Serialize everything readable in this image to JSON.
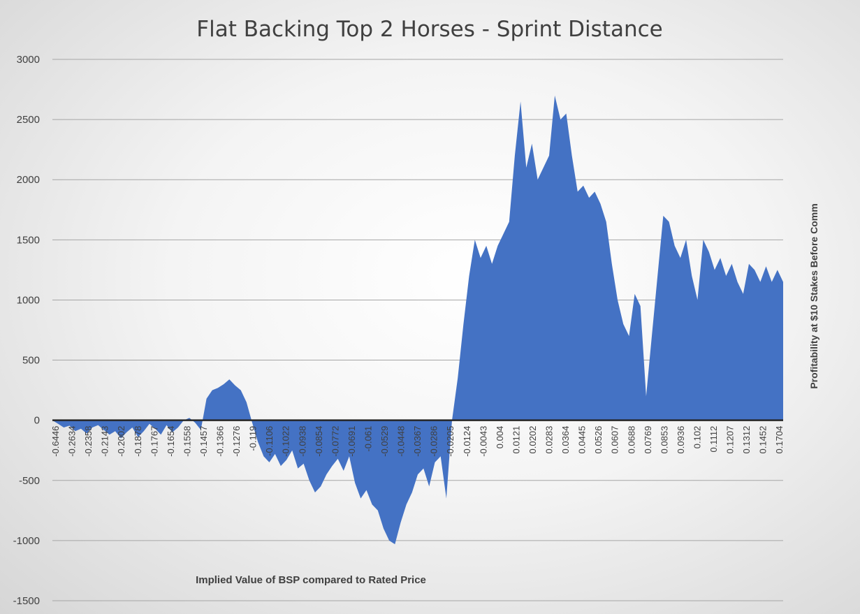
{
  "chart_data": {
    "type": "area",
    "title": "Flat Backing Top 2 Horses - Sprint Distance",
    "xlabel": "Implied Value of BSP compared to Rated Price",
    "ylabel": "Profitability at $10 Stakes Before Comm",
    "ylim": [
      -1500,
      3000
    ],
    "y_ticks": [
      3000,
      2500,
      2000,
      1500,
      1000,
      500,
      0,
      -500,
      -1000,
      -1500
    ],
    "grid": true,
    "legend": "none",
    "series_color": "#4472C4",
    "x_tick_labels": [
      "-0.6446",
      "-0.2634",
      "-0.2358",
      "-0.2143",
      "-0.2002",
      "-0.1878",
      "-0.1767",
      "-0.1654",
      "-0.1558",
      "-0.1457",
      "-0.1366",
      "-0.1276",
      "-0.119",
      "-0.1106",
      "-0.1022",
      "-0.0938",
      "-0.0854",
      "-0.0772",
      "-0.0691",
      "-0.061",
      "-0.0529",
      "-0.0448",
      "-0.0367",
      "-0.0286",
      "-0.0205",
      "-0.0124",
      "-0.0043",
      "0.004",
      "0.0121",
      "0.0202",
      "0.0283",
      "0.0364",
      "0.0445",
      "0.0526",
      "0.0607",
      "0.0688",
      "0.0769",
      "0.0853",
      "0.0936",
      "0.102",
      "0.1112",
      "0.1207",
      "0.1312",
      "0.1452",
      "0.1704"
    ],
    "series": [
      {
        "values": [
          0,
          -30,
          -60,
          -45,
          -90,
          -70,
          -110,
          -60,
          -40,
          -80,
          -120,
          -90,
          -150,
          -100,
          -60,
          -140,
          -90,
          -30,
          -70,
          -120,
          -40,
          -100,
          -60,
          0,
          20,
          -20,
          -80,
          180,
          250,
          270,
          300,
          340,
          290,
          250,
          150,
          -20,
          -180,
          -300,
          -350,
          -280,
          -380,
          -330,
          -250,
          -400,
          -360,
          -500,
          -600,
          -550,
          -450,
          -380,
          -320,
          -420,
          -300,
          -520,
          -650,
          -580,
          -700,
          -750,
          -900,
          -1000,
          -1030,
          -850,
          -700,
          -600,
          -450,
          -400,
          -550,
          -350,
          -300,
          -650,
          0,
          350,
          800,
          1200,
          1500,
          1350,
          1450,
          1300,
          1450,
          1550,
          1650,
          2200,
          2650,
          2100,
          2300,
          2000,
          2100,
          2200,
          2700,
          2500,
          2550,
          2200,
          1900,
          1950,
          1850,
          1900,
          1800,
          1650,
          1300,
          1000,
          800,
          700,
          1050,
          950,
          200,
          700,
          1200,
          1700,
          1650,
          1450,
          1350,
          1500,
          1200,
          1000,
          1500,
          1400,
          1250,
          1350,
          1200,
          1300,
          1150,
          1050,
          1300,
          1250,
          1150,
          1280,
          1150,
          1250,
          1150
        ]
      }
    ]
  }
}
